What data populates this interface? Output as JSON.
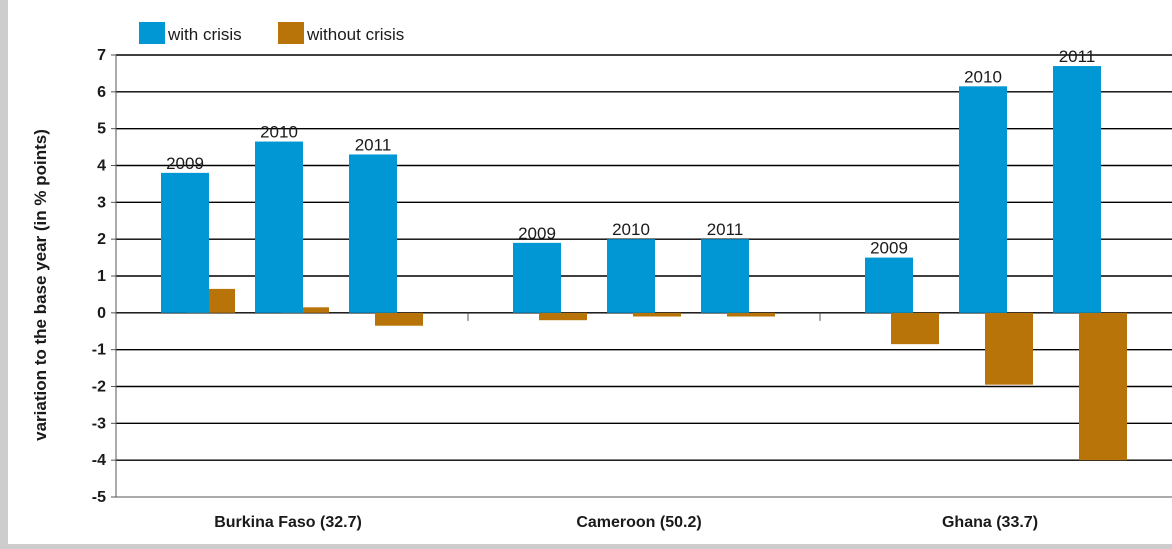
{
  "chart_data": {
    "type": "bar",
    "title": "",
    "xlabel": "",
    "ylabel": "variation to the base year (in % points)",
    "ylim": [
      -5,
      7
    ],
    "yticks": [
      7,
      6,
      5,
      4,
      3,
      2,
      1,
      0,
      -1,
      -2,
      -3,
      -4,
      -5
    ],
    "grid": true,
    "legend_position": "top-left",
    "colors": {
      "with_crisis": "#0097d4",
      "without_crisis": "#b87309",
      "grid": "#000000",
      "background": "#ffffff"
    },
    "groups": [
      {
        "label": "Burkina Faso (32.7)",
        "years": [
          "2009",
          "2010",
          "2011"
        ],
        "with_crisis": [
          3.8,
          4.65,
          4.3
        ],
        "without_crisis": [
          0.65,
          0.15,
          -0.35
        ]
      },
      {
        "label": "Cameroon (50.2)",
        "years": [
          "2009",
          "2010",
          "2011"
        ],
        "with_crisis": [
          1.9,
          2.0,
          2.0
        ],
        "without_crisis": [
          -0.2,
          -0.1,
          -0.1
        ]
      },
      {
        "label": "Ghana (33.7)",
        "years": [
          "2009",
          "2010",
          "2011"
        ],
        "with_crisis": [
          1.5,
          6.15,
          6.7
        ],
        "without_crisis": [
          -0.85,
          -1.95,
          -4.0
        ]
      }
    ],
    "series": [
      {
        "name": "with crisis",
        "key": "with_crisis"
      },
      {
        "name": "without crisis",
        "key": "without_crisis"
      }
    ]
  }
}
